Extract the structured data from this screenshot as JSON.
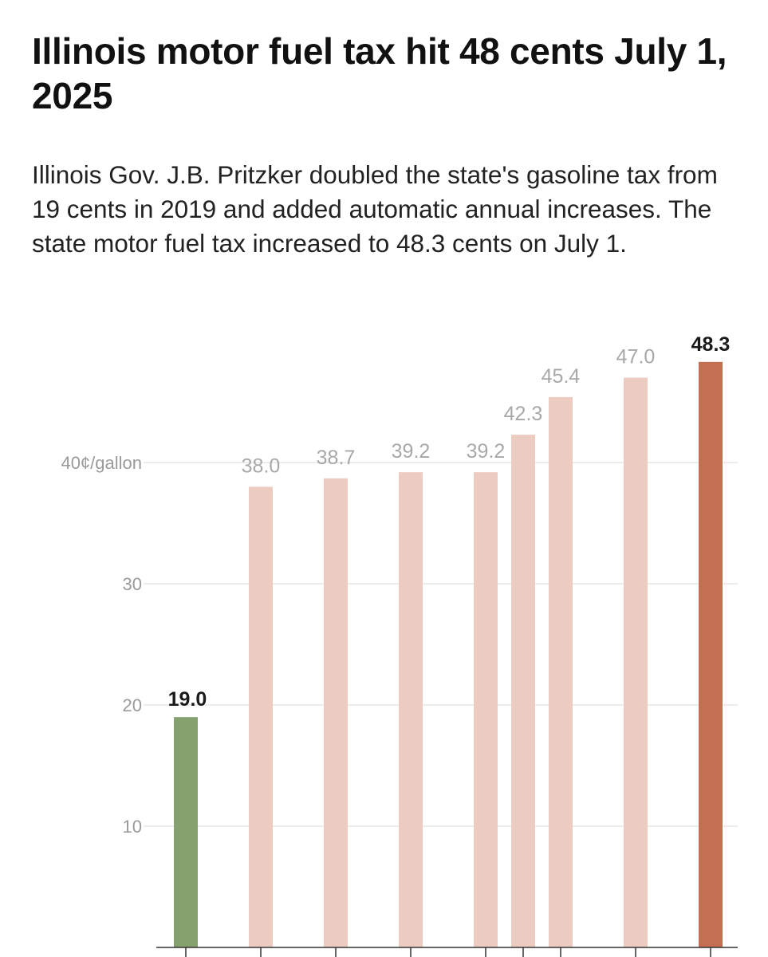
{
  "header": {
    "title": "Illinois motor fuel tax hit 48 cents July 1, 2025",
    "subtitle": "Illinois Gov. J.B. Pritzker doubled the state's gasoline tax from 19 cents in 2019 and added automatic annual increases. The state motor fuel tax increased to 48.3 cents on July 1."
  },
  "colors": {
    "first_bar": "#86a06e",
    "middle_bars": "#ecccc0",
    "last_bar": "#c56f52",
    "gridline": "#e6e6e6",
    "axis": "#333333"
  },
  "chart_data": {
    "type": "bar",
    "title": "Illinois motor fuel tax hit 48 cents July 1, 2025",
    "ylim": [
      0,
      50
    ],
    "yticks": [
      10,
      20,
      30,
      40
    ],
    "ytick_labels": [
      "10",
      "20",
      "30",
      "40¢/gallon"
    ],
    "grid": true,
    "values": [
      19.0,
      38.0,
      38.7,
      39.2,
      39.2,
      42.3,
      45.4,
      47.0,
      48.3
    ],
    "value_labels": [
      "19.0",
      "38.0",
      "38.7",
      "39.2",
      "39.2",
      "42.3",
      "45.4",
      "47.0",
      "48.3"
    ],
    "highlight": [
      "first",
      "normal",
      "normal",
      "normal",
      "normal",
      "normal",
      "normal",
      "normal",
      "last"
    ],
    "time_order": [
      0,
      1,
      2,
      3,
      4,
      4.5,
      5,
      6,
      7
    ]
  }
}
